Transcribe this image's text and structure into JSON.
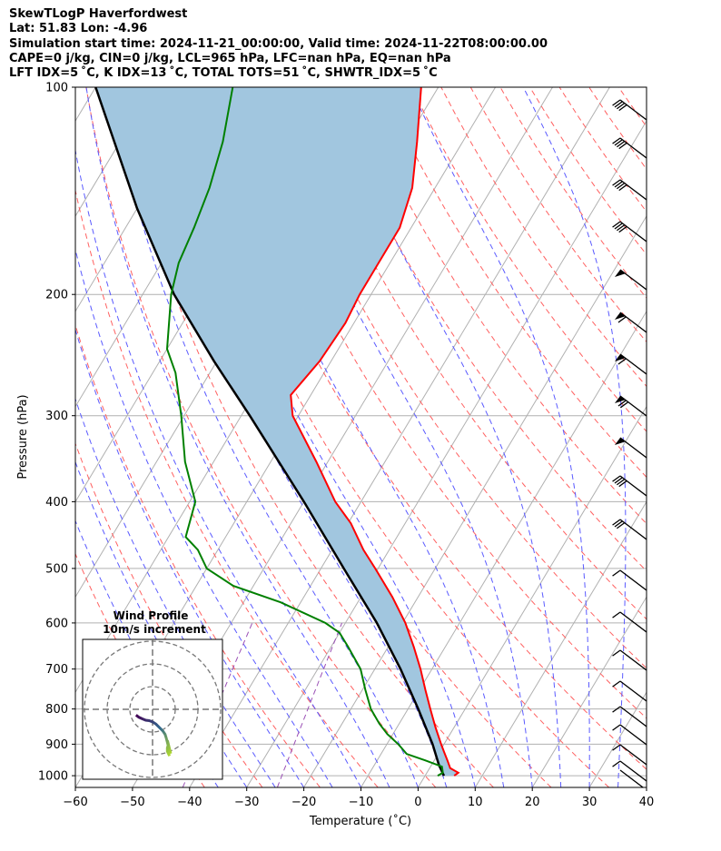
{
  "header": {
    "line1": "SkewTLogP Haverfordwest",
    "line2": "Lat: 51.83   Lon: -4.96",
    "line3": "Simulation start time: 2024-11-21_00:00:00, Valid time: 2024-11-22T08:00:00.00",
    "line4": "CAPE=0 j/kg, CIN=0 j/kg, LCL=965 hPa, LFC=nan hPa, EQ=nan hPa",
    "line5": "LFT IDX=5 ˚C, K IDX=13 ˚C, TOTAL TOTS=51 ˚C, SHWTR_IDX=5 ˚C"
  },
  "colors": {
    "temperature": "#ff0000",
    "dewpoint": "#008000",
    "parcel": "#000000",
    "cape_shade": "#a1c6df",
    "dry_adiabat": "#ff6060",
    "moist_adiabat": "#5a5aff",
    "mixing_ratio": "#9a4fb5",
    "isotherm": "#b0b0b0"
  },
  "chart_data": [
    {
      "type": "line",
      "subtype": "skew-T log-P",
      "xlabel": "Temperature (˚C)",
      "ylabel": "Pressure (hPa)",
      "xlim": [
        -60,
        40
      ],
      "ylim": [
        1040,
        100
      ],
      "y_scale": "log",
      "x_ticks": [
        "−60",
        "−50",
        "−40",
        "−30",
        "−20",
        "−10",
        "0",
        "10",
        "20",
        "30",
        "40"
      ],
      "x_tick_values": [
        -60,
        -50,
        -40,
        -30,
        -20,
        -10,
        0,
        10,
        20,
        30,
        40
      ],
      "y_ticks": [
        "100",
        "200",
        "300",
        "400",
        "500",
        "600",
        "700",
        "800",
        "900",
        "1000"
      ],
      "y_tick_values": [
        100,
        200,
        300,
        400,
        500,
        600,
        700,
        800,
        900,
        1000
      ],
      "grid": true,
      "series": [
        {
          "key": "temperature",
          "pressure": [
            1000,
            990,
            975,
            950,
            925,
            900,
            850,
            800,
            750,
            700,
            650,
            600,
            550,
            500,
            470,
            430,
            400,
            350,
            300,
            280,
            250,
            220,
            200,
            180,
            160,
            140,
            120,
            100
          ],
          "values": [
            5.1,
            5.5,
            3.6,
            2.3,
            0.9,
            -0.5,
            -3.3,
            -6.1,
            -9.0,
            -12.0,
            -15.5,
            -19.5,
            -24.5,
            -30.5,
            -34.5,
            -39.5,
            -44.5,
            -52.0,
            -61.0,
            -63.5,
            -62.0,
            -61.5,
            -62.0,
            -62.0,
            -62.0,
            -64.0,
            -68.0,
            -73.0
          ]
        },
        {
          "key": "dewpoint",
          "pressure": [
            1000,
            990,
            970,
            950,
            930,
            900,
            870,
            840,
            800,
            750,
            700,
            650,
            620,
            600,
            560,
            530,
            500,
            470,
            450,
            400,
            350,
            300,
            260,
            240,
            200,
            180,
            160,
            140,
            120,
            100
          ],
          "values": [
            2.2,
            2.8,
            2.0,
            -1.6,
            -5.5,
            -8.0,
            -11.0,
            -13.5,
            -16.5,
            -19.5,
            -22.5,
            -27.0,
            -30.0,
            -33.5,
            -43.5,
            -53.5,
            -60.0,
            -63.5,
            -67.0,
            -69.0,
            -75.0,
            -80.5,
            -86.0,
            -90.0,
            -95.0,
            -97.0,
            -98.0,
            -99.5,
            -102.0,
            -106.0
          ]
        },
        {
          "key": "parcel",
          "pressure": [
            1000,
            965,
            900,
            800,
            700,
            600,
            500,
            400,
            300,
            250,
            200,
            150,
            100
          ],
          "values": [
            3.3,
            1.3,
            -2.0,
            -8.2,
            -15.5,
            -24.5,
            -36.0,
            -50.0,
            -68.5,
            -80.5,
            -94.5,
            -110.0,
            -130.0
          ]
        }
      ]
    },
    {
      "type": "line",
      "subtype": "hodograph",
      "title": "Wind Profile",
      "subtitle": "10m/s increment",
      "ring_increment_ms": 10,
      "u": [
        -7.3,
        -6.0,
        -4.5,
        -3.0,
        -1.5,
        0.0,
        1.5,
        3.0,
        4.5,
        5.5,
        6.0,
        6.5,
        7.0,
        7.5,
        8.0,
        7.0,
        6.5,
        6.5,
        7.0,
        7.5
      ],
      "v": [
        -2.5,
        -3.5,
        -4.2,
        -4.8,
        -5.0,
        -5.5,
        -6.5,
        -8.0,
        -9.5,
        -11.0,
        -12.5,
        -14.5,
        -16.5,
        -18.0,
        -19.5,
        -15.5,
        -17.0,
        -18.5,
        -19.5,
        -20.5
      ]
    }
  ]
}
